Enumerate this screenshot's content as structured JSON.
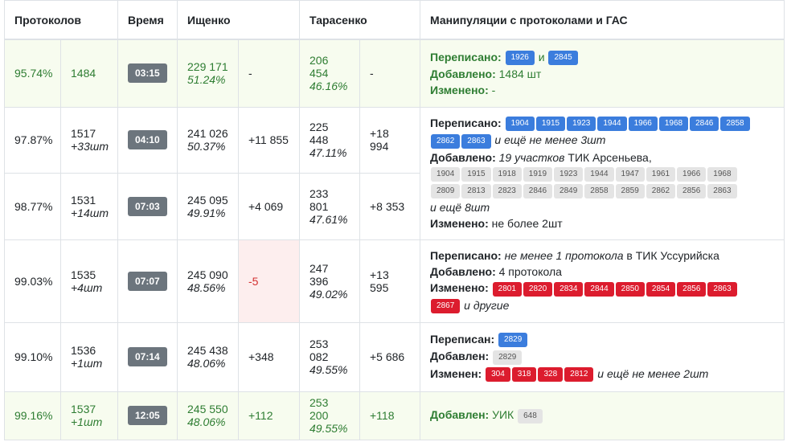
{
  "headers": [
    "Протоколов",
    "Время",
    "Ищенко",
    "Тарасенко",
    "Манипуляции с протоколами и ГАС"
  ],
  "rows": [
    {
      "pct": "95.74%",
      "count": "1484",
      "count_delta": "",
      "time": "03:15",
      "ish_votes": "229 171",
      "ish_pct": "51.24%",
      "ish_delta": "-",
      "tar_votes": "206 454",
      "tar_pct": "46.16%",
      "tar_delta": "-"
    },
    {
      "pct": "97.87%",
      "count": "1517",
      "count_delta": "+33шт",
      "time": "04:10",
      "ish_votes": "241 026",
      "ish_pct": "50.37%",
      "ish_delta": "+11 855",
      "tar_votes": "225 448",
      "tar_pct": "47.11%",
      "tar_delta": "+18 994"
    },
    {
      "pct": "98.77%",
      "count": "1531",
      "count_delta": "+14шт",
      "time": "07:03",
      "ish_votes": "245 095",
      "ish_pct": "49.91%",
      "ish_delta": "+4 069",
      "tar_votes": "233 801",
      "tar_pct": "47.61%",
      "tar_delta": "+8 353"
    },
    {
      "pct": "99.03%",
      "count": "1535",
      "count_delta": "+4шт",
      "time": "07:07",
      "ish_votes": "245 090",
      "ish_pct": "48.56%",
      "ish_delta": "-5",
      "tar_votes": "247 396",
      "tar_pct": "49.02%",
      "tar_delta": "+13 595"
    },
    {
      "pct": "99.10%",
      "count": "1536",
      "count_delta": "+1шт",
      "time": "07:14",
      "ish_votes": "245 438",
      "ish_pct": "48.06%",
      "ish_delta": "+348",
      "tar_votes": "253 082",
      "tar_pct": "49.55%",
      "tar_delta": "+5 686"
    },
    {
      "pct": "99.16%",
      "count": "1537",
      "count_delta": "+1шт",
      "time": "12:05",
      "ish_votes": "245 550",
      "ish_pct": "48.06%",
      "ish_delta": "+112",
      "tar_votes": "253 200",
      "tar_pct": "49.55%",
      "tar_delta": "+118"
    }
  ],
  "manip": {
    "m1": {
      "rewritten_label": "Переписано:",
      "rewritten_badges": [
        "1926",
        "2845"
      ],
      "and": "и",
      "added_label": "Добавлено:",
      "added_text": "1484 шт",
      "changed_label": "Изменено:",
      "changed_text": "-"
    },
    "m2": {
      "rewritten_label": "Переписано:",
      "rewritten_badges": [
        "1904",
        "1915",
        "1923",
        "1944",
        "1966",
        "1968",
        "2846",
        "2858",
        "2862",
        "2863"
      ],
      "rewritten_suffix": "и ещё не менее 3шт",
      "added_label": "Добавлено:",
      "added_text_italic": "19 участков",
      "added_text": "ТИК Арсеньева,",
      "added_badges": [
        "1904",
        "1915",
        "1918",
        "1919",
        "1923",
        "1944",
        "1947",
        "1961",
        "1966",
        "1968",
        "2809",
        "2813",
        "2823",
        "2846",
        "2849",
        "2858",
        "2859",
        "2862",
        "2856",
        "2863"
      ],
      "added_suffix": "и ещё 8шт",
      "changed_label": "Изменено:",
      "changed_text": "не более 2шт"
    },
    "m3": {
      "rewritten_label": "Переписано:",
      "rewritten_text_italic": "не менее 1 протокола",
      "rewritten_text": "в ТИК Уссурийска",
      "added_label": "Добавлено:",
      "added_text": "4 протокола",
      "changed_label": "Изменено:",
      "changed_badges": [
        "2801",
        "2820",
        "2834",
        "2844",
        "2850",
        "2854",
        "2856",
        "2863",
        "2867"
      ],
      "changed_suffix": "и другие"
    },
    "m4": {
      "rewritten_label": "Переписан:",
      "rewritten_badges": [
        "2829"
      ],
      "added_label": "Добавлен:",
      "added_badges": [
        "2829"
      ],
      "changed_label": "Изменен:",
      "changed_badges": [
        "304",
        "318",
        "328",
        "2812"
      ],
      "changed_suffix": "и ещё не менее 2шт"
    },
    "m5": {
      "added_label": "Добавлен:",
      "added_text": "УИК",
      "added_badges": [
        "648"
      ]
    }
  },
  "colors": {
    "green": "#2e7d32",
    "green_row_bg": "#f7fcef",
    "negative_bg": "#fdeeee",
    "negative_text": "#d32f2f",
    "badge_blue": "#3b7ddd",
    "badge_gray": "#e4e4e4",
    "badge_red": "#dc1c2e",
    "time_badge": "#6c757d"
  }
}
